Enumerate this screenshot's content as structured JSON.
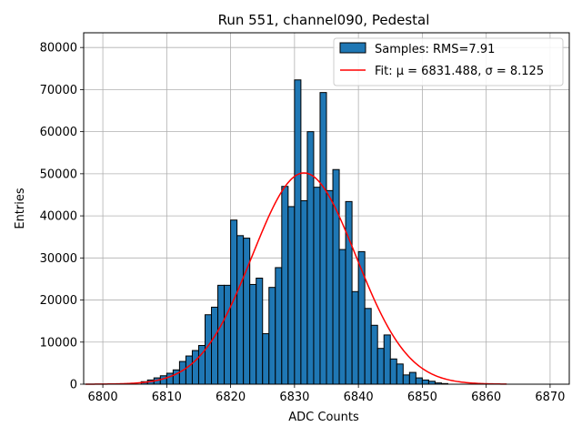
{
  "chart_data": {
    "type": "bar",
    "title": "Run 551, channel090, Pedestal",
    "xlabel": "ADC Counts",
    "ylabel": "Entries",
    "xlim": [
      6797,
      6873
    ],
    "ylim": [
      0,
      83500
    ],
    "grid": true,
    "legend_position": "top-right",
    "xticks": [
      6800,
      6810,
      6820,
      6830,
      6840,
      6850,
      6860,
      6870
    ],
    "yticks": [
      0,
      10000,
      20000,
      30000,
      40000,
      50000,
      60000,
      70000,
      80000
    ],
    "bar_color": "#1f77b4",
    "fit_color": "#ff0000",
    "histogram": {
      "name": "Samples: RMS=7.91",
      "bin_start": 6806,
      "bin_width": 1,
      "values": [
        600,
        1000,
        1500,
        2000,
        2600,
        3400,
        5400,
        6700,
        8000,
        9200,
        16500,
        18300,
        23500,
        23500,
        39000,
        35300,
        34700,
        23700,
        25200,
        12000,
        23000,
        27700,
        47000,
        42200,
        72300,
        43600,
        60000,
        46800,
        69300,
        46000,
        51000,
        32000,
        43400,
        22000,
        31500,
        18000,
        14000,
        8500,
        11700,
        6000,
        4800,
        2200,
        2800,
        1500,
        1000,
        700,
        300,
        150
      ]
    },
    "fit": {
      "name": "Fit: μ = 6831.488, σ = 8.125",
      "mu": 6831.488,
      "sigma": 8.125,
      "amplitude": 50200,
      "x_range": [
        6797.3,
        6863.2
      ]
    }
  }
}
